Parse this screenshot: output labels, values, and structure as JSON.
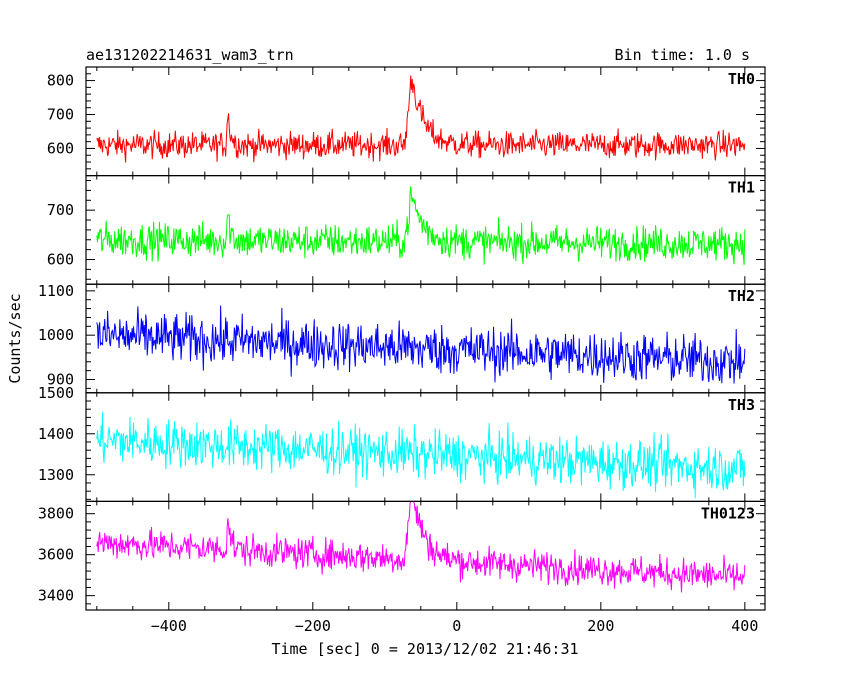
{
  "header": {
    "title": "ae131202214631_wam3_trn",
    "bin_time": "Bin time: 1.0 s"
  },
  "chart_data": {
    "type": "line",
    "title": "ae131202214631_wam3_trn",
    "subtitle": "Bin time: 1.0 s",
    "xlabel": "Time [sec] 0 = 2013/12/02 21:46:31",
    "ylabel": "Counts/sec",
    "xlim": [
      -515,
      428
    ],
    "x_ticks": [
      -400,
      -200,
      0,
      200,
      400
    ],
    "grid": false,
    "panels": [
      {
        "name": "TH0",
        "color": "#ff0000",
        "ylim": [
          520,
          840
        ],
        "y_ticks": [
          600,
          700,
          800
        ],
        "baseline": 610,
        "noise": 28,
        "trend": 0,
        "features": [
          {
            "t": -318,
            "peak": 95,
            "width": 4
          },
          {
            "t": -62,
            "peak": 195,
            "width": 16
          }
        ]
      },
      {
        "name": "TH1",
        "color": "#00ff00",
        "ylim": [
          550,
          770
        ],
        "y_ticks": [
          600,
          700
        ],
        "baseline": 640,
        "noise": 25,
        "trend": -8,
        "features": [
          {
            "t": -318,
            "peak": 55,
            "width": 4
          },
          {
            "t": -62,
            "peak": 90,
            "width": 16
          }
        ]
      },
      {
        "name": "TH2",
        "color": "#0000ff",
        "ylim": [
          870,
          1115
        ],
        "y_ticks": [
          900,
          1000,
          1100
        ],
        "baseline": 1000,
        "noise": 40,
        "trend": -60,
        "features": []
      },
      {
        "name": "TH3",
        "color": "#00ffff",
        "ylim": [
          1235,
          1500
        ],
        "y_ticks": [
          1300,
          1400,
          1500
        ],
        "baseline": 1385,
        "noise": 42,
        "trend": -70,
        "features": []
      },
      {
        "name": "TH0123",
        "color": "#ff00ff",
        "ylim": [
          3330,
          3860
        ],
        "y_ticks": [
          3400,
          3600,
          3800
        ],
        "baseline": 3660,
        "noise": 55,
        "trend": -170,
        "features": [
          {
            "t": -318,
            "peak": 160,
            "width": 4
          },
          {
            "t": -62,
            "peak": 340,
            "width": 16
          }
        ]
      }
    ],
    "series_x_range": [
      -500,
      400
    ]
  }
}
